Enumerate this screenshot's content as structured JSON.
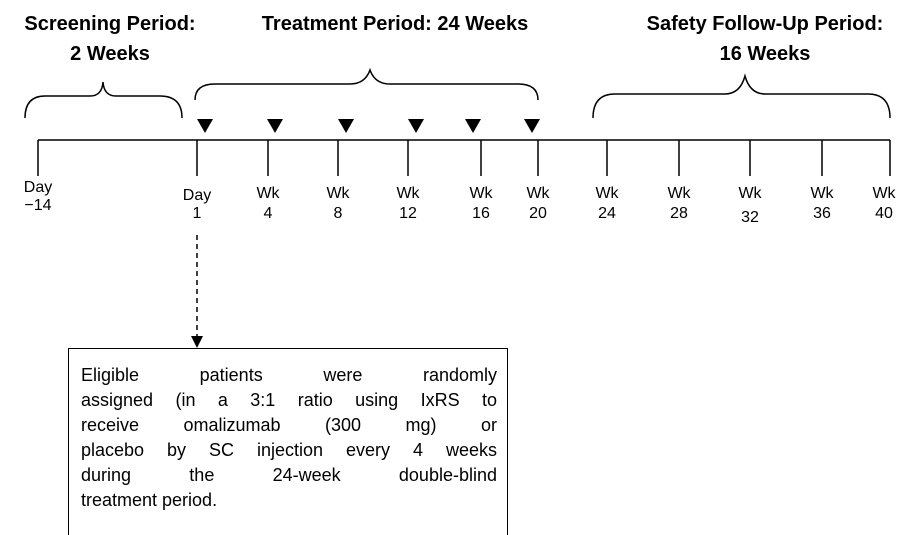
{
  "periods": [
    {
      "lines": [
        "Screening Period:",
        "2 Weeks"
      ]
    },
    {
      "lines": [
        "Treatment Period: 24 Weeks"
      ]
    },
    {
      "lines": [
        "Safety Follow-Up Period:",
        "16 Weeks"
      ]
    }
  ],
  "timepoints": [
    {
      "lines": [
        "Day",
        "−14"
      ]
    },
    {
      "lines": [
        "Day",
        "1"
      ]
    },
    {
      "lines": [
        "Wk",
        "4"
      ]
    },
    {
      "lines": [
        "Wk",
        "8"
      ]
    },
    {
      "lines": [
        "Wk",
        "12"
      ]
    },
    {
      "lines": [
        "Wk",
        "16"
      ]
    },
    {
      "lines": [
        "Wk",
        "20"
      ]
    },
    {
      "lines": [
        "Wk",
        "24"
      ]
    },
    {
      "lines": [
        "Wk",
        "28"
      ]
    },
    {
      "lines": [
        "Wk",
        "32"
      ]
    },
    {
      "lines": [
        "Wk",
        "36"
      ]
    },
    {
      "lines": [
        "Wk",
        "40"
      ]
    }
  ],
  "note": {
    "lines": [
      "Eligible patients were randomly",
      "assigned (in a 3:1 ratio using IxRS to",
      "receive omalizumab (300 mg) or",
      "placebo by SC injection every 4 weeks",
      "during the 24-week double-blind",
      "treatment period."
    ]
  }
}
